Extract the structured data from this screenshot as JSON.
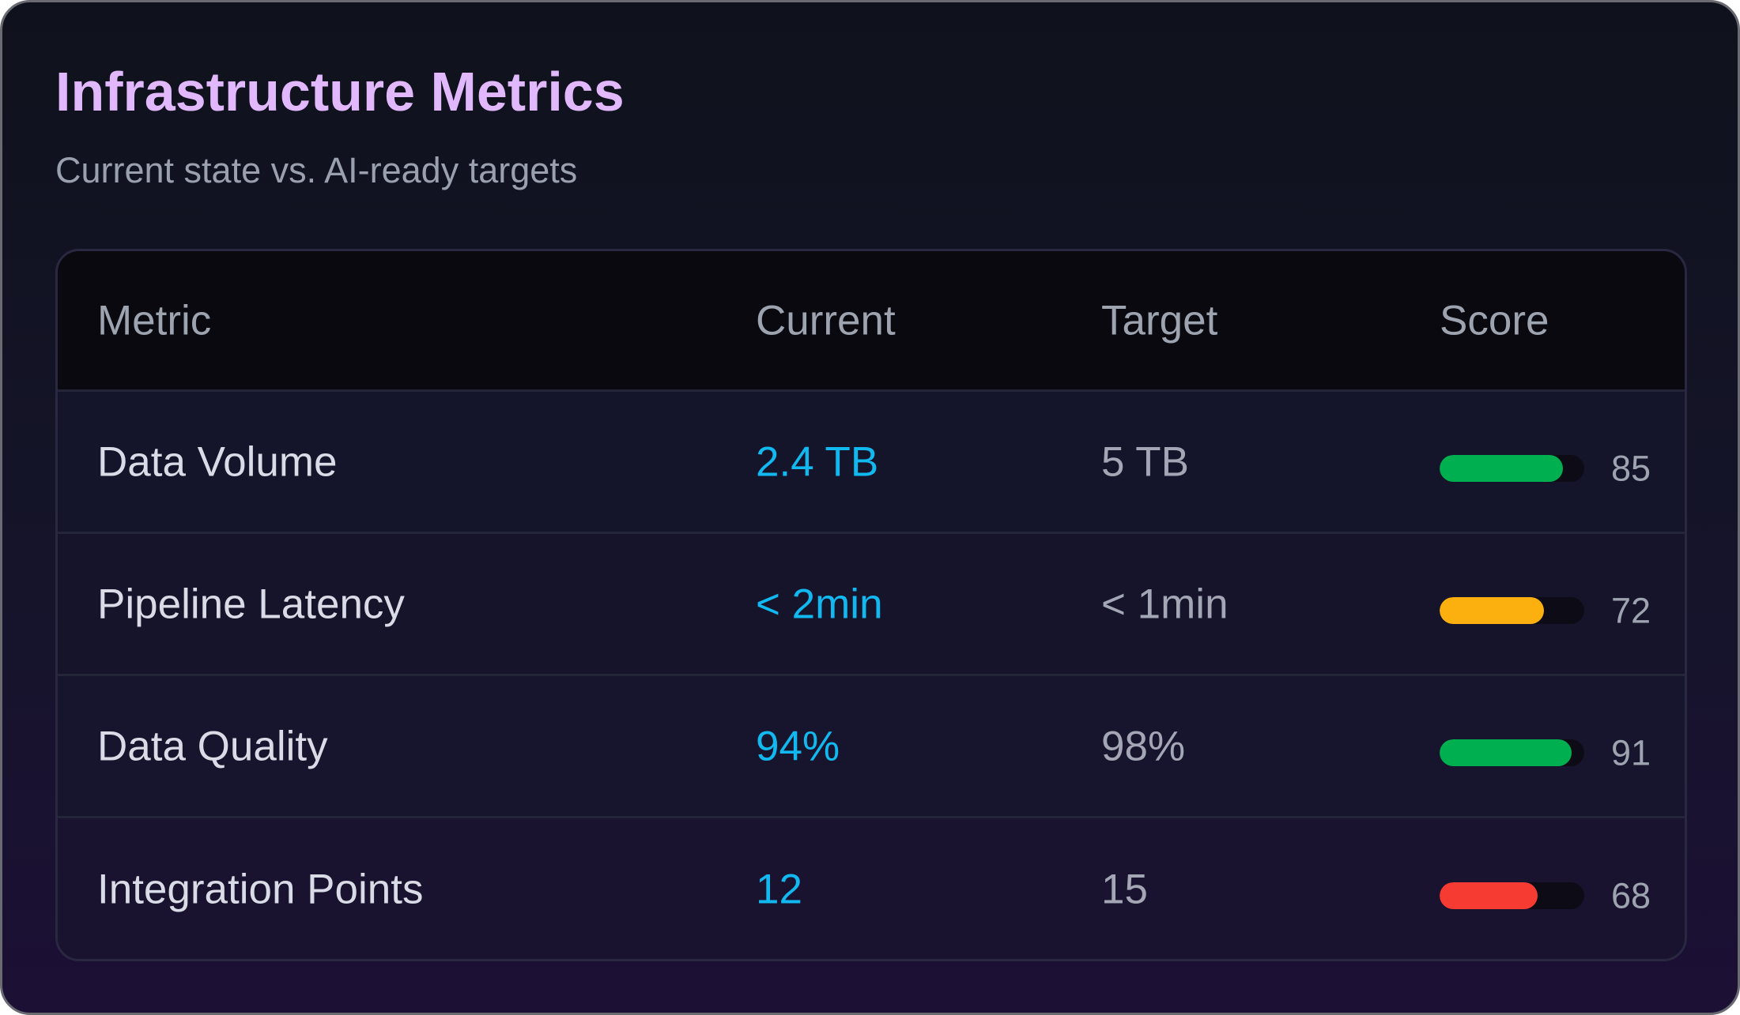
{
  "card": {
    "title": "Infrastructure Metrics",
    "subtitle": "Current state vs. AI-ready targets"
  },
  "table": {
    "headers": {
      "metric": "Metric",
      "current": "Current",
      "target": "Target",
      "score": "Score"
    },
    "rows": [
      {
        "metric": "Data Volume",
        "current": "2.4 TB",
        "target": "5 TB",
        "score": "85",
        "score_value": 85,
        "bar_color": "#00b050"
      },
      {
        "metric": "Pipeline Latency",
        "current": "< 2min",
        "target": "< 1min",
        "score": "72",
        "score_value": 72,
        "bar_color": "#fbb00f"
      },
      {
        "metric": "Data Quality",
        "current": "94%",
        "target": "98%",
        "score": "91",
        "score_value": 91,
        "bar_color": "#00b050"
      },
      {
        "metric": "Integration Points",
        "current": "12",
        "target": "15",
        "score": "68",
        "score_value": 68,
        "bar_color": "#f53b32"
      }
    ]
  },
  "colors": {
    "title": "#e2b8fc",
    "current_value": "#12b8f0",
    "good": "#00b050",
    "warning": "#fbb00f",
    "critical": "#f53b32"
  }
}
